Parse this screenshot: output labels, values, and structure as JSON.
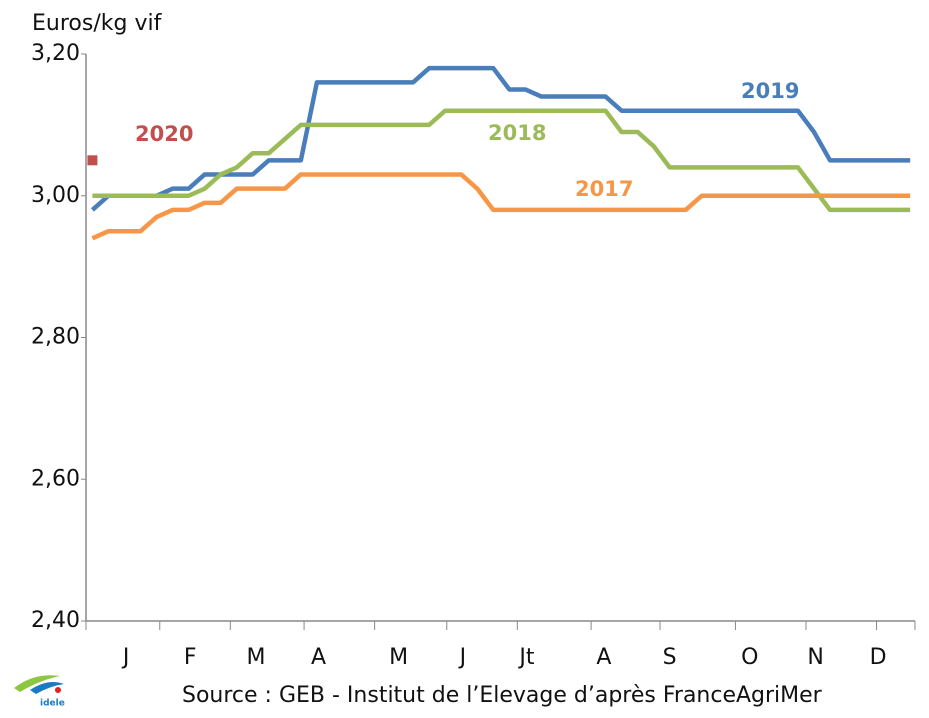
{
  "chart_data": {
    "type": "line",
    "y_label": "Euros/kg vif",
    "source": "Source : GEB - Institut de l’Elevage d’après FranceAgriMer",
    "logo_text": "idele",
    "x": [
      1,
      2,
      3,
      4,
      5,
      6,
      7,
      8,
      9,
      10,
      11,
      12,
      13,
      14,
      15,
      16,
      17,
      18,
      19,
      20,
      21,
      22,
      23,
      24,
      25,
      26,
      27,
      28,
      29,
      30,
      31,
      32,
      33,
      34,
      35,
      36,
      37,
      38,
      39,
      40,
      41,
      42,
      43,
      44,
      45,
      46,
      47,
      48,
      49,
      50,
      51,
      52
    ],
    "xlim": [
      0.6,
      52.3
    ],
    "xticks": [
      {
        "value": 3.1,
        "label": "J"
      },
      {
        "value": 7.1,
        "label": "F"
      },
      {
        "value": 11.2,
        "label": "M"
      },
      {
        "value": 15.1,
        "label": "A"
      },
      {
        "value": 20.1,
        "label": "M"
      },
      {
        "value": 24.1,
        "label": "J"
      },
      {
        "value": 28.1,
        "label": "Jt"
      },
      {
        "value": 32.9,
        "label": "A"
      },
      {
        "value": 37.0,
        "label": "S"
      },
      {
        "value": 42.0,
        "label": "O"
      },
      {
        "value": 46.1,
        "label": "N"
      },
      {
        "value": 50.0,
        "label": "D"
      }
    ],
    "xtick_marks": [
      0.6,
      5.2,
      9.6,
      14.2,
      18.6,
      23.1,
      27.5,
      32.1,
      36.4,
      41.1,
      45.5,
      49.9,
      52.3
    ],
    "ylim": [
      2.4,
      3.2
    ],
    "yticks": [
      {
        "value": 2.4,
        "label": "2,40"
      },
      {
        "value": 2.6,
        "label": "2,60"
      },
      {
        "value": 2.8,
        "label": "2,80"
      },
      {
        "value": 3.0,
        "label": "3,00"
      },
      {
        "value": 3.2,
        "label": "3,20"
      }
    ],
    "grid": false,
    "series": [
      {
        "name": "2019",
        "color": "#4a7ebb",
        "values": [
          2.98,
          3.0,
          3.0,
          3.0,
          3.0,
          3.01,
          3.01,
          3.03,
          3.03,
          3.03,
          3.03,
          3.05,
          3.05,
          3.05,
          3.16,
          3.16,
          3.16,
          3.16,
          3.16,
          3.16,
          3.16,
          3.18,
          3.18,
          3.18,
          3.18,
          3.18,
          3.15,
          3.15,
          3.14,
          3.14,
          3.14,
          3.14,
          3.14,
          3.12,
          3.12,
          3.12,
          3.12,
          3.12,
          3.12,
          3.12,
          3.12,
          3.12,
          3.12,
          3.12,
          3.12,
          3.09,
          3.05,
          3.05,
          3.05,
          3.05,
          3.05,
          3.05
        ]
      },
      {
        "name": "2018",
        "color": "#9bbb59",
        "values": [
          3.0,
          3.0,
          3.0,
          3.0,
          3.0,
          3.0,
          3.0,
          3.01,
          3.03,
          3.04,
          3.06,
          3.06,
          3.08,
          3.1,
          3.1,
          3.1,
          3.1,
          3.1,
          3.1,
          3.1,
          3.1,
          3.1,
          3.12,
          3.12,
          3.12,
          3.12,
          3.12,
          3.12,
          3.12,
          3.12,
          3.12,
          3.12,
          3.12,
          3.09,
          3.09,
          3.07,
          3.04,
          3.04,
          3.04,
          3.04,
          3.04,
          3.04,
          3.04,
          3.04,
          3.04,
          3.01,
          2.98,
          2.98,
          2.98,
          2.98,
          2.98,
          2.98
        ]
      },
      {
        "name": "2017",
        "color": "#f79646",
        "values": [
          2.94,
          2.95,
          2.95,
          2.95,
          2.97,
          2.98,
          2.98,
          2.99,
          2.99,
          3.01,
          3.01,
          3.01,
          3.01,
          3.03,
          3.03,
          3.03,
          3.03,
          3.03,
          3.03,
          3.03,
          3.03,
          3.03,
          3.03,
          3.03,
          3.01,
          2.98,
          2.98,
          2.98,
          2.98,
          2.98,
          2.98,
          2.98,
          2.98,
          2.98,
          2.98,
          2.98,
          2.98,
          2.98,
          3.0,
          3.0,
          3.0,
          3.0,
          3.0,
          3.0,
          3.0,
          3.0,
          3.0,
          3.0,
          3.0,
          3.0,
          3.0,
          3.0
        ]
      },
      {
        "name": "2020",
        "color": "#c0504d",
        "values": [
          3.05,
          null,
          null,
          null,
          null,
          null,
          null,
          null,
          null,
          null,
          null,
          null,
          null,
          null,
          null,
          null,
          null,
          null,
          null,
          null,
          null,
          null,
          null,
          null,
          null,
          null,
          null,
          null,
          null,
          null,
          null,
          null,
          null,
          null,
          null,
          null,
          null,
          null,
          null,
          null,
          null,
          null,
          null,
          null,
          null,
          null,
          null,
          null,
          null,
          null,
          null,
          null
        ]
      }
    ]
  }
}
